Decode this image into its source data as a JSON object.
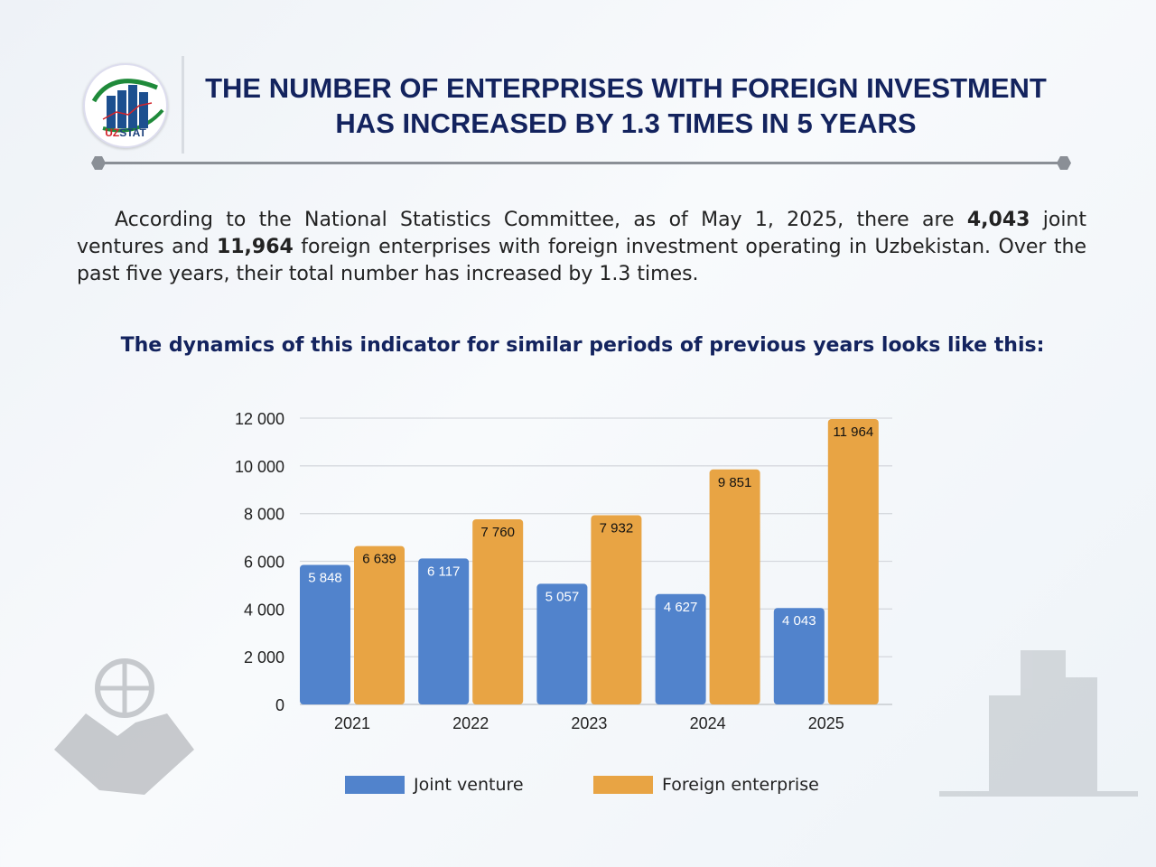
{
  "header": {
    "logo_text_a": "UZ",
    "logo_text_b": "STAT",
    "title": "THE NUMBER OF ENTERPRISES WITH FOREIGN INVESTMENT HAS INCREASED BY 1.3 TIMES IN 5 YEARS"
  },
  "paragraph": {
    "p1": "According to the National Statistics Committee, as of May 1, 2025, there are ",
    "v1": "4,043",
    "p2": " joint ventures and ",
    "v2": "11,964",
    "p3": " foreign enterprises with foreign investment operating in Uzbekistan. Over the past five years, their total number has increased by 1.3 times."
  },
  "subtitle": "The dynamics of this indicator for similar periods of previous years looks like this:",
  "chart_data": {
    "type": "bar",
    "categories": [
      "2021",
      "2022",
      "2023",
      "2024",
      "2025"
    ],
    "series": [
      {
        "name": "Joint venture",
        "color": "#5183cc",
        "values": [
          5848,
          6117,
          5057,
          4627,
          4043
        ],
        "labels": [
          "5 848",
          "6 117",
          "5 057",
          "4 627",
          "4 043"
        ]
      },
      {
        "name": "Foreign enterprise",
        "color": "#e8a444",
        "values": [
          6639,
          7760,
          7932,
          9851,
          11964
        ],
        "labels": [
          "6 639",
          "7 760",
          "7 932",
          "9 851",
          "11 964"
        ]
      }
    ],
    "ylim": [
      0,
      12000
    ],
    "yticks": [
      0,
      2000,
      4000,
      6000,
      8000,
      10000,
      12000
    ],
    "ytick_labels": [
      "0",
      "2 000",
      "4 000",
      "6 000",
      "8 000",
      "10 000",
      "12 000"
    ],
    "grid": true,
    "legend": "bottom"
  }
}
